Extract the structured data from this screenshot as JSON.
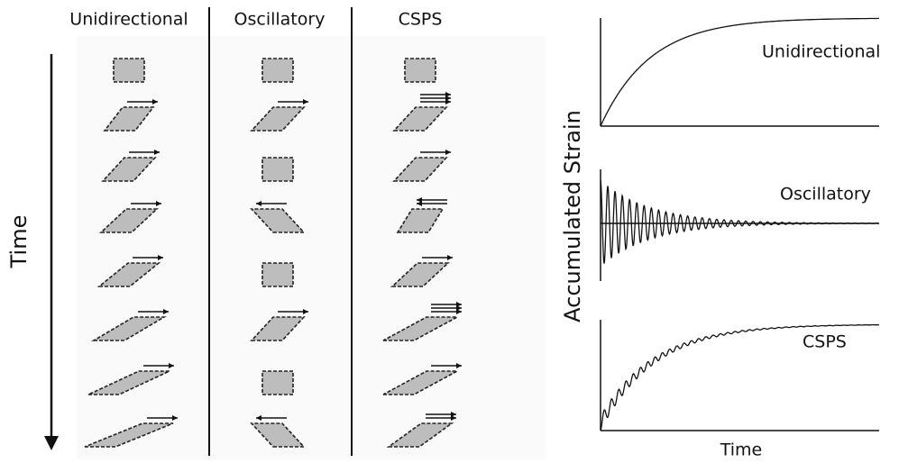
{
  "left_panel": {
    "columns": [
      "Unidirectional",
      "Oscillatory",
      "CSPS"
    ],
    "axis_label": "Time"
  },
  "right_panel": {
    "y_label": "Accumulated Strain",
    "x_label": "Time",
    "plots": [
      "Unidirectional",
      "Oscillatory",
      "CSPS"
    ]
  }
}
